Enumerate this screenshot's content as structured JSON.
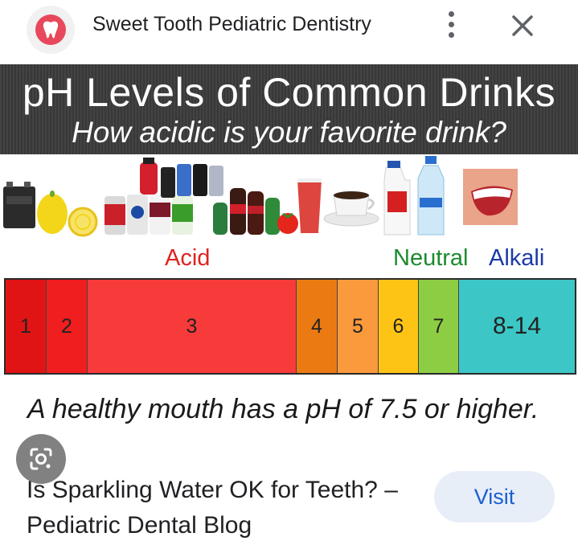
{
  "header": {
    "site_name": "Sweet Tooth Pediatric Dentistry",
    "logo_icon": "tooth-icon",
    "more_icon": "more-vert-icon",
    "close_icon": "close-icon"
  },
  "image": {
    "title": "pH Levels of Common Drinks",
    "subtitle": "How acidic is your favorite drink?",
    "labels": {
      "acid": "Acid",
      "neutral": "Neutral",
      "alkali": "Alkali"
    },
    "scale": [
      {
        "label": "1",
        "color": "#e01414"
      },
      {
        "label": "2",
        "color": "#f01e1e"
      },
      {
        "label": "3",
        "color": "#f73a3a"
      },
      {
        "label": "4",
        "color": "#ec7a12"
      },
      {
        "label": "5",
        "color": "#fa9a3c"
      },
      {
        "label": "6",
        "color": "#fdc416"
      },
      {
        "label": "7",
        "color": "#8ccd44"
      },
      {
        "label": "8-14",
        "color": "#3cc6c6"
      }
    ],
    "healthy_text": "A healthy mouth has a pH of 7.5 or higher.",
    "lens_icon": "google-lens-icon"
  },
  "caption": {
    "title": "Is Sparkling Water OK for Teeth? – Pediatric Dental Blog",
    "visit_label": "Visit"
  }
}
